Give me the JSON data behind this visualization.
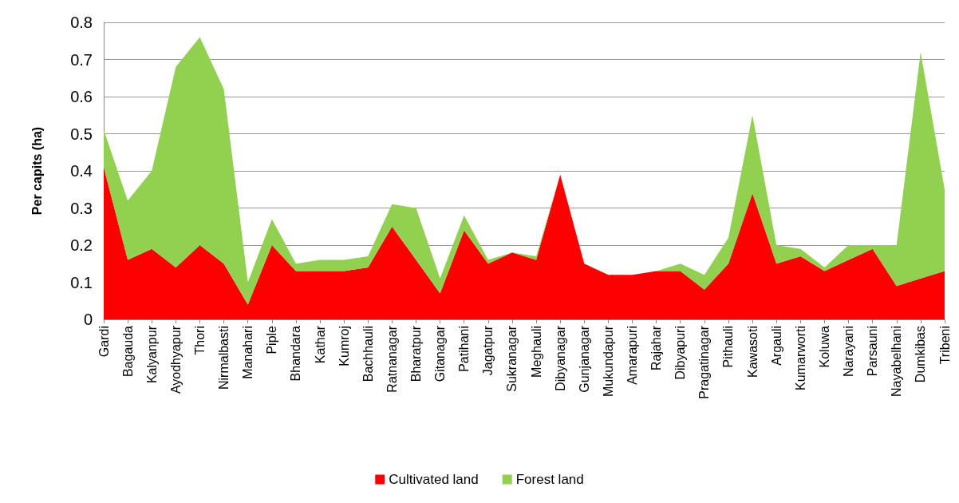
{
  "chart_data": {
    "type": "area",
    "stacked": true,
    "ylabel": "Per capits (ha)",
    "categories": [
      "Gardi",
      "Bagauda",
      "Kalyanpur",
      "Ayodhyapur",
      "Thori",
      "Nirmalbasti",
      "Manahari",
      "Piple",
      "Bhandara",
      "Kathar",
      "Kumroj",
      "Bachhauli",
      "Ratnanagar",
      "Bharatpur",
      "Gitanagar",
      "Patihani",
      "Jagatpur",
      "Sukranagar",
      "Meghauli",
      "Dibyanagar",
      "Gunjanagar",
      "Mukundapur",
      "Amarapuri",
      "Rajahar",
      "Dibyapuri",
      "Pragatinagar",
      "Pithauli",
      "Kawasoti",
      "Argauli",
      "Kumarworti",
      "Koluwa",
      "Narayani",
      "Parsauni",
      "Nayabelhani",
      "Dumkibas",
      "Tribeni"
    ],
    "series": [
      {
        "name": "Cultivated land",
        "color": "#ff0000",
        "values": [
          0.41,
          0.16,
          0.19,
          0.14,
          0.2,
          0.15,
          0.04,
          0.2,
          0.13,
          0.13,
          0.13,
          0.14,
          0.25,
          0.16,
          0.07,
          0.24,
          0.15,
          0.18,
          0.16,
          0.39,
          0.15,
          0.12,
          0.12,
          0.13,
          0.13,
          0.08,
          0.15,
          0.34,
          0.15,
          0.17,
          0.13,
          0.16,
          0.19,
          0.09,
          0.11,
          0.13
        ]
      },
      {
        "name": "Forest land",
        "color": "#92d050",
        "values": [
          0.1,
          0.16,
          0.21,
          0.54,
          0.56,
          0.47,
          0.06,
          0.07,
          0.02,
          0.03,
          0.03,
          0.03,
          0.06,
          0.14,
          0.04,
          0.04,
          0.01,
          0,
          0.01,
          0,
          0,
          0,
          0,
          0,
          0.02,
          0.04,
          0.07,
          0.21,
          0.05,
          0.02,
          0.01,
          0.04,
          0.01,
          0.11,
          0.61,
          0.22
        ]
      }
    ],
    "ylim": [
      0,
      0.8
    ],
    "yticks": [
      0,
      0.1,
      0.2,
      0.3,
      0.4,
      0.5,
      0.6,
      0.7,
      0.8
    ],
    "grid": "y",
    "legend": "bottom"
  }
}
